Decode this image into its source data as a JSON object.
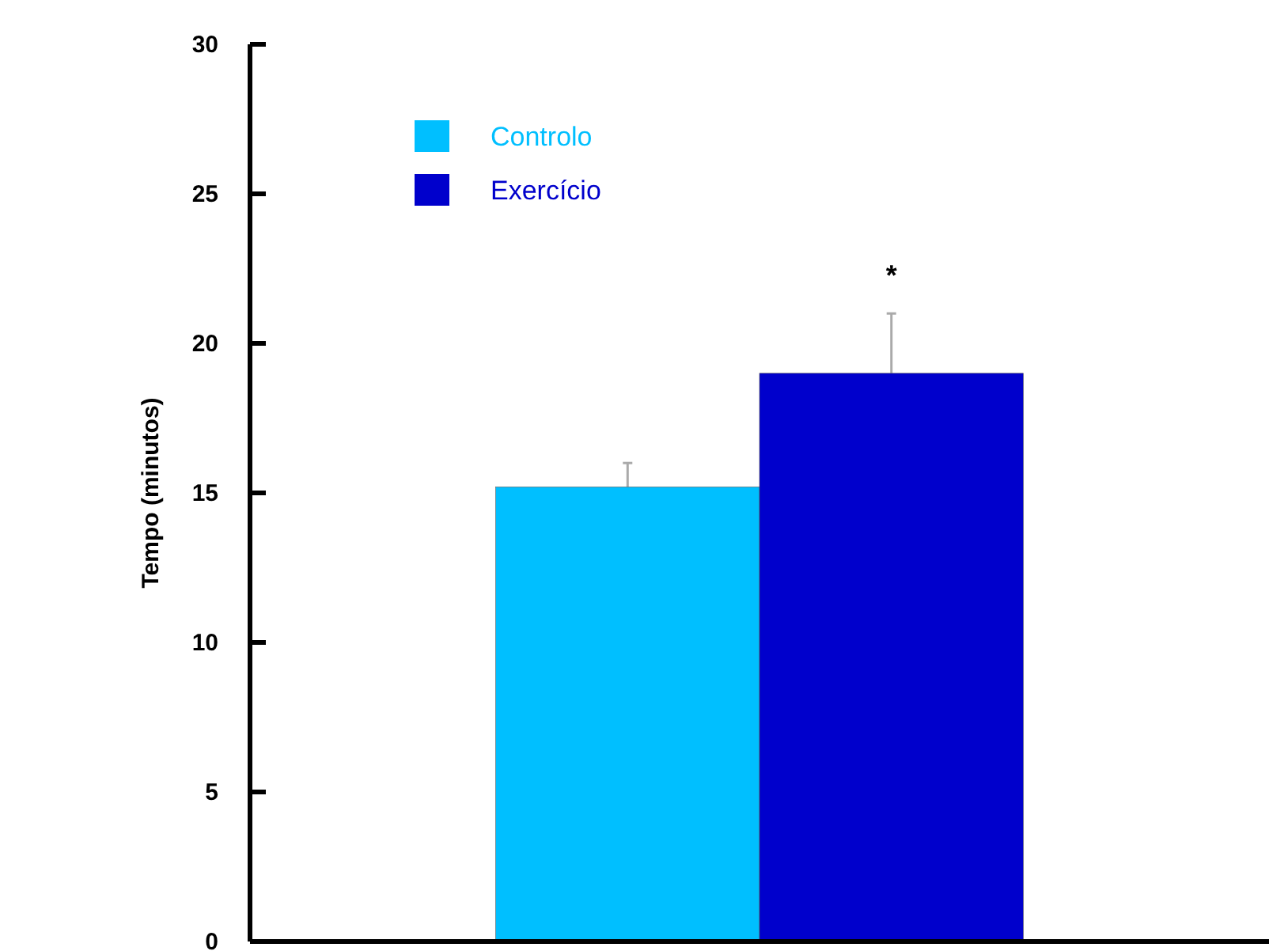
{
  "chart_data": {
    "type": "bar",
    "ylabel": "Tempo (minutos)",
    "categories": [
      null
    ],
    "series": [
      {
        "name": "Controlo",
        "color": "#00bfff",
        "values": [
          15.2
        ],
        "errors": [
          [
            15.2,
            16.0
          ]
        ]
      },
      {
        "name": "Exercício",
        "color": "#0000cc",
        "values": [
          19.0
        ],
        "errors": [
          [
            19.0,
            21.0
          ]
        ]
      }
    ],
    "ylim": [
      0,
      30
    ],
    "yticks": [
      0,
      5,
      10,
      15,
      20,
      25,
      30
    ],
    "legend": "top left",
    "tick_labels": "y",
    "annotations": [
      "*"
    ]
  }
}
